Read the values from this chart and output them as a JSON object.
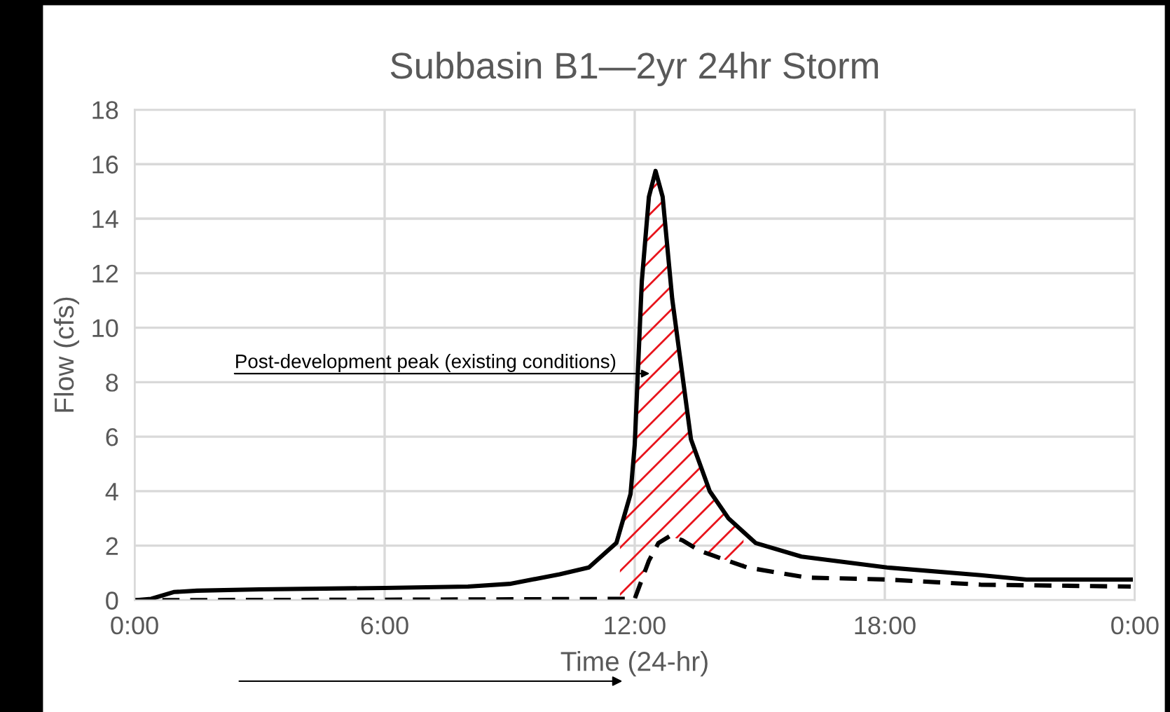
{
  "chart_data": {
    "type": "line",
    "title": "Subbasin B1—2yr 24hr Storm",
    "xlabel": "Time (24-hr)",
    "ylabel": "Flow (cfs)",
    "series": [
      {
        "color": "#000000",
        "line_style": "solid",
        "x": [
          0,
          0.4,
          0.94,
          1.5,
          3,
          6,
          8,
          9,
          10.2,
          10.9,
          11.56,
          11.9,
          12.0,
          12.17,
          12.34,
          12.5,
          12.67,
          12.9,
          13.14,
          13.35,
          13.8,
          14.25,
          14.9,
          16.0,
          18.05,
          20.3,
          21.4,
          23.9
        ],
        "values": [
          0,
          0.05,
          0.3,
          0.35,
          0.4,
          0.45,
          0.5,
          0.6,
          0.95,
          1.2,
          2.1,
          3.9,
          5.7,
          11.7,
          14.8,
          15.75,
          14.8,
          11.05,
          8.3,
          5.9,
          4.0,
          3.0,
          2.1,
          1.6,
          1.2,
          0.92,
          0.76,
          0.76
        ]
      },
      {
        "color": "#000000",
        "line_style": "dashed",
        "x": [
          0,
          6,
          12.0,
          12.34,
          12.57,
          12.84,
          13.14,
          13.58,
          14.7,
          16.15,
          18.05,
          20.3,
          23.9
        ],
        "values": [
          0,
          0.02,
          0.05,
          1.45,
          2.1,
          2.35,
          2.2,
          1.8,
          1.2,
          0.83,
          0.76,
          0.57,
          0.5
        ]
      }
    ],
    "xlim": [
      0,
      24
    ],
    "xticks": [
      {
        "value": 0,
        "label": "0:00"
      },
      {
        "value": 6,
        "label": "6:00"
      },
      {
        "value": 12,
        "label": "12:00"
      },
      {
        "value": 18,
        "label": "18:00"
      },
      {
        "value": 24,
        "label": "0:00"
      }
    ],
    "ylim": [
      0,
      18
    ],
    "yticks": [
      0,
      2,
      4,
      6,
      8,
      10,
      12,
      14,
      16,
      18
    ],
    "grid": true,
    "annotations": [
      "Post-development peak (existing conditions)"
    ]
  }
}
